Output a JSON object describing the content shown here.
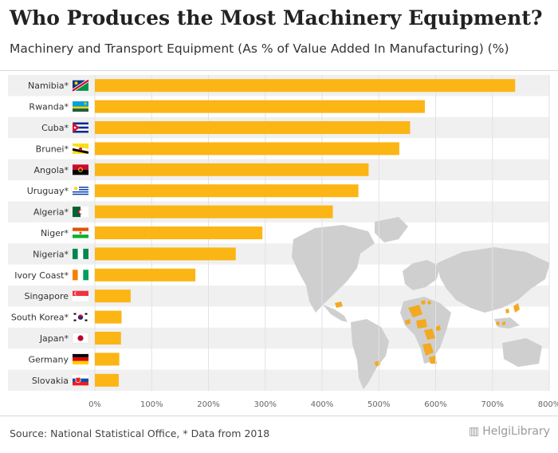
{
  "header": {
    "title": "Who Produces the Most Machinery Equipment?",
    "subtitle": "Machinery and Transport Equipment (As % of Value Added In Manufacturing) (%)"
  },
  "footer": {
    "source": "Source: National Statistical Office, * Data from 2018",
    "brand": "HelgiLibrary"
  },
  "colors": {
    "bar": "#fbb515",
    "band": "#f0f0f0",
    "grid": "#e2e2e2",
    "map_land": "#cfcfcf",
    "map_highlight": "#f3a920"
  },
  "chart_data": {
    "type": "bar",
    "orientation": "horizontal",
    "title": "Who Produces the Most Machinery Equipment?",
    "subtitle": "Machinery and Transport Equipment (As % of Value Added In Manufacturing) (%)",
    "xlabel": "",
    "ylabel": "",
    "xlim": [
      0,
      800
    ],
    "grid": true,
    "tick_labels": [
      "0%",
      "100%",
      "200%",
      "300%",
      "400%",
      "500%",
      "600%",
      "700%",
      "800%"
    ],
    "categories": [
      "Namibia*",
      "Rwanda*",
      "Cuba*",
      "Brunei*",
      "Angola*",
      "Uruguay*",
      "Algeria*",
      "Niger*",
      "Nigeria*",
      "Ivory Coast*",
      "Singapore",
      "South Korea*",
      "Japan*",
      "Germany",
      "Slovakia"
    ],
    "values": [
      740,
      581,
      555,
      536,
      482,
      464,
      419,
      295,
      248,
      177,
      63,
      47,
      46,
      43,
      42
    ],
    "flag_icons": [
      "namibia-flag-icon",
      "rwanda-flag-icon",
      "cuba-flag-icon",
      "brunei-flag-icon",
      "angola-flag-icon",
      "uruguay-flag-icon",
      "algeria-flag-icon",
      "niger-flag-icon",
      "nigeria-flag-icon",
      "ivory-coast-flag-icon",
      "singapore-flag-icon",
      "south-korea-flag-icon",
      "japan-flag-icon",
      "germany-flag-icon",
      "slovakia-flag-icon"
    ]
  }
}
